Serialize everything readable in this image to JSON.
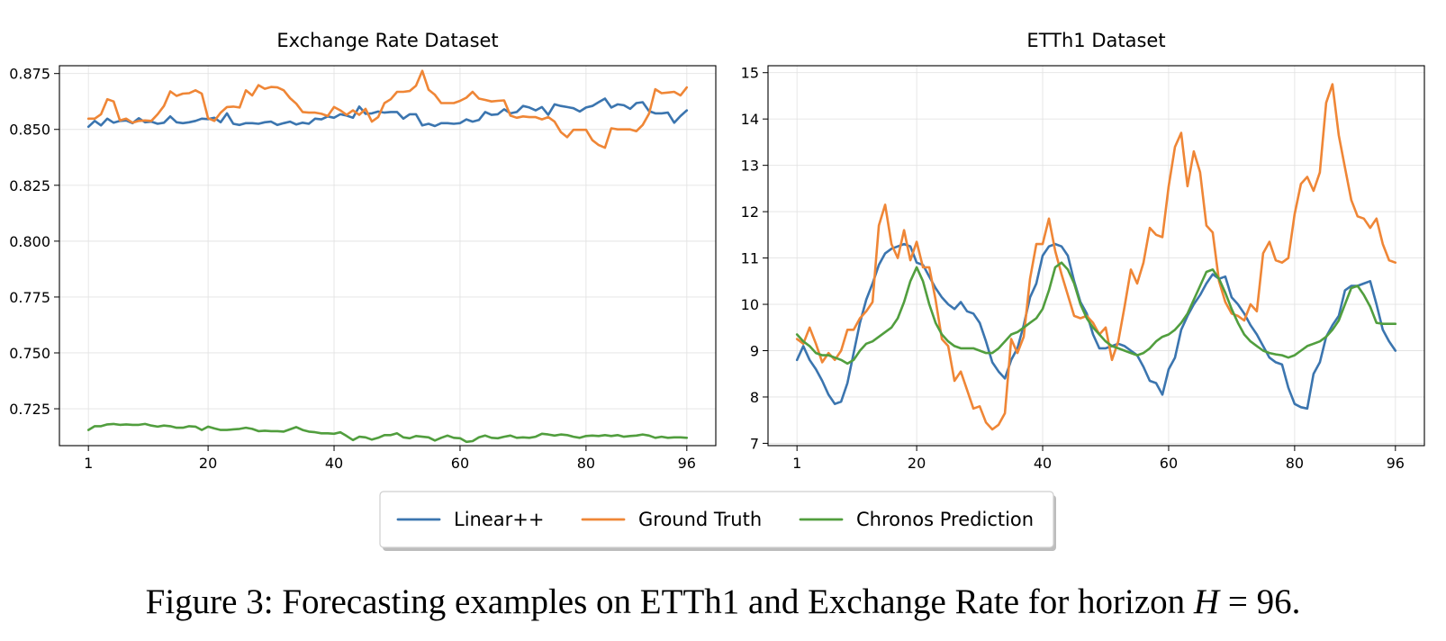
{
  "caption": {
    "text": "Figure 3: Forecasting examples on ETTh1 and Exchange Rate for horizon ",
    "math_var": "H",
    "math_rest": " = 96."
  },
  "legend": {
    "placement": "bottom-center, outside",
    "entries": [
      {
        "name": "Linear++",
        "color": "#3b75af"
      },
      {
        "name": "Ground Truth",
        "color": "#ef8636"
      },
      {
        "name": "Chronos Prediction",
        "color": "#519e3e"
      }
    ]
  },
  "chart_data": [
    {
      "type": "line",
      "title": "Exchange Rate Dataset",
      "xlabel": "",
      "ylabel": "",
      "xlim": [
        -3.6,
        100.6
      ],
      "ylim": [
        0.7085,
        0.8785
      ],
      "grid": true,
      "xticks": [
        1,
        20,
        40,
        60,
        80,
        96
      ],
      "yticks": [
        0.725,
        0.75,
        0.775,
        0.8,
        0.825,
        0.85,
        0.875
      ],
      "ytick_labels": [
        "0.725",
        "0.750",
        "0.775",
        "0.800",
        "0.825",
        "0.850",
        "0.875"
      ],
      "x_start": 1,
      "series": [
        {
          "name": "Linear++",
          "color": "#3b75af",
          "values": [
            0.8512,
            0.8538,
            0.8518,
            0.8548,
            0.853,
            0.8538,
            0.854,
            0.8528,
            0.855,
            0.8532,
            0.8535,
            0.8525,
            0.853,
            0.8558,
            0.8532,
            0.8528,
            0.8532,
            0.8538,
            0.8548,
            0.8546,
            0.8552,
            0.8532,
            0.8572,
            0.8525,
            0.852,
            0.8528,
            0.8528,
            0.8525,
            0.8532,
            0.8535,
            0.852,
            0.8528,
            0.8535,
            0.8522,
            0.853,
            0.8525,
            0.8548,
            0.8545,
            0.8558,
            0.8552,
            0.8568,
            0.8562,
            0.8552,
            0.8602,
            0.857,
            0.8572,
            0.858,
            0.8575,
            0.8578,
            0.8578,
            0.8548,
            0.8568,
            0.8568,
            0.8518,
            0.8525,
            0.8515,
            0.8528,
            0.8528,
            0.8525,
            0.8528,
            0.8545,
            0.8535,
            0.8542,
            0.8578,
            0.8565,
            0.8568,
            0.859,
            0.8572,
            0.8578,
            0.8605,
            0.8598,
            0.8585,
            0.86,
            0.8565,
            0.8612,
            0.8605,
            0.86,
            0.8595,
            0.858,
            0.8598,
            0.8605,
            0.8622,
            0.8638,
            0.8598,
            0.8612,
            0.8608,
            0.8592,
            0.8618,
            0.8622,
            0.8582,
            0.8572,
            0.8572,
            0.8575,
            0.853,
            0.856,
            0.8585
          ]
        },
        {
          "name": "Ground Truth",
          "color": "#ef8636",
          "values": [
            0.8548,
            0.8548,
            0.8568,
            0.8635,
            0.8625,
            0.854,
            0.8548,
            0.853,
            0.8538,
            0.854,
            0.8538,
            0.8568,
            0.8605,
            0.867,
            0.865,
            0.866,
            0.8662,
            0.8675,
            0.866,
            0.855,
            0.8538,
            0.8575,
            0.86,
            0.8602,
            0.8598,
            0.8675,
            0.8652,
            0.8698,
            0.8682,
            0.869,
            0.8688,
            0.8675,
            0.864,
            0.8615,
            0.8578,
            0.8575,
            0.8575,
            0.857,
            0.856,
            0.86,
            0.8585,
            0.8565,
            0.8585,
            0.8565,
            0.8592,
            0.8535,
            0.8555,
            0.8618,
            0.8635,
            0.8668,
            0.8668,
            0.8672,
            0.8695,
            0.8762,
            0.8678,
            0.8655,
            0.8618,
            0.8618,
            0.8618,
            0.8628,
            0.8642,
            0.8668,
            0.8638,
            0.8632,
            0.8625,
            0.8628,
            0.863,
            0.8562,
            0.8552,
            0.8558,
            0.8555,
            0.8555,
            0.8545,
            0.8555,
            0.8535,
            0.8488,
            0.8465,
            0.8498,
            0.8498,
            0.8498,
            0.8452,
            0.843,
            0.8418,
            0.8505,
            0.85,
            0.85,
            0.85,
            0.8492,
            0.852,
            0.857,
            0.868,
            0.8662,
            0.8665,
            0.8668,
            0.8652,
            0.8688
          ]
        },
        {
          "name": "Chronos Prediction",
          "color": "#519e3e",
          "values": [
            0.7155,
            0.7172,
            0.7172,
            0.718,
            0.7182,
            0.7178,
            0.718,
            0.7178,
            0.7178,
            0.7182,
            0.7175,
            0.717,
            0.7175,
            0.7172,
            0.7165,
            0.7165,
            0.7172,
            0.717,
            0.7155,
            0.717,
            0.7162,
            0.7155,
            0.7155,
            0.7158,
            0.716,
            0.7165,
            0.716,
            0.715,
            0.7152,
            0.715,
            0.715,
            0.7148,
            0.7158,
            0.7168,
            0.7155,
            0.7148,
            0.7145,
            0.714,
            0.714,
            0.7138,
            0.7145,
            0.7128,
            0.711,
            0.7125,
            0.7122,
            0.7112,
            0.712,
            0.7132,
            0.7132,
            0.714,
            0.7122,
            0.7118,
            0.7128,
            0.7125,
            0.7122,
            0.7108,
            0.712,
            0.713,
            0.712,
            0.7118,
            0.7102,
            0.7105,
            0.7122,
            0.713,
            0.712,
            0.7118,
            0.7125,
            0.713,
            0.712,
            0.7122,
            0.712,
            0.7125,
            0.7138,
            0.7135,
            0.713,
            0.7135,
            0.7132,
            0.7125,
            0.712,
            0.7128,
            0.713,
            0.7128,
            0.7132,
            0.7128,
            0.7132,
            0.7125,
            0.7128,
            0.713,
            0.7135,
            0.713,
            0.712,
            0.7125,
            0.712,
            0.7122,
            0.7122,
            0.712
          ]
        }
      ]
    },
    {
      "type": "line",
      "title": "ETTh1 Dataset",
      "xlabel": "",
      "ylabel": "",
      "xlim": [
        -3.6,
        100.6
      ],
      "ylim": [
        6.95,
        15.15
      ],
      "grid": true,
      "xticks": [
        1,
        20,
        40,
        60,
        80,
        96
      ],
      "yticks": [
        7,
        8,
        9,
        10,
        11,
        12,
        13,
        14,
        15
      ],
      "ytick_labels": [
        "7",
        "8",
        "9",
        "10",
        "11",
        "12",
        "13",
        "14",
        "15"
      ],
      "x_start": 1,
      "series": [
        {
          "name": "Linear++",
          "color": "#3b75af",
          "values": [
            8.8,
            9.1,
            8.8,
            8.6,
            8.35,
            8.05,
            7.85,
            7.9,
            8.3,
            8.95,
            9.6,
            10.1,
            10.45,
            10.85,
            11.1,
            11.2,
            11.25,
            11.3,
            11.25,
            10.9,
            10.85,
            10.6,
            10.35,
            10.15,
            10.0,
            9.9,
            10.05,
            9.85,
            9.8,
            9.6,
            9.2,
            8.75,
            8.55,
            8.4,
            8.8,
            9.05,
            9.55,
            10.15,
            10.45,
            11.05,
            11.25,
            11.3,
            11.25,
            11.05,
            10.5,
            10.05,
            9.8,
            9.35,
            9.05,
            9.05,
            9.1,
            9.15,
            9.1,
            9.0,
            8.9,
            8.65,
            8.35,
            8.3,
            8.05,
            8.6,
            8.85,
            9.45,
            9.75,
            10.0,
            10.2,
            10.45,
            10.65,
            10.55,
            10.6,
            10.15,
            10.0,
            9.8,
            9.55,
            9.35,
            9.1,
            8.85,
            8.75,
            8.7,
            8.2,
            7.85,
            7.78,
            7.75,
            8.5,
            8.75,
            9.3,
            9.55,
            9.75,
            10.3,
            10.4,
            10.4,
            10.45,
            10.5,
            10.0,
            9.45,
            9.2,
            9.0
          ]
        },
        {
          "name": "Ground Truth",
          "color": "#ef8636",
          "values": [
            9.25,
            9.15,
            9.5,
            9.15,
            8.75,
            8.95,
            8.8,
            9.0,
            9.45,
            9.45,
            9.7,
            9.85,
            10.05,
            11.7,
            12.15,
            11.3,
            11.0,
            11.6,
            10.95,
            11.35,
            10.8,
            10.8,
            10.1,
            9.25,
            9.1,
            8.35,
            8.55,
            8.15,
            7.75,
            7.8,
            7.45,
            7.3,
            7.4,
            7.65,
            9.25,
            8.95,
            9.3,
            10.55,
            11.3,
            11.3,
            11.85,
            11.15,
            10.65,
            10.2,
            9.75,
            9.7,
            9.75,
            9.6,
            9.35,
            9.5,
            8.8,
            9.2,
            9.95,
            10.75,
            10.45,
            10.9,
            11.65,
            11.5,
            11.45,
            12.55,
            13.4,
            13.7,
            12.55,
            13.3,
            12.85,
            11.7,
            11.55,
            10.5,
            10.05,
            9.8,
            9.75,
            9.65,
            10.0,
            9.85,
            11.1,
            11.35,
            10.95,
            10.9,
            11.0,
            11.95,
            12.6,
            12.75,
            12.45,
            12.85,
            14.35,
            14.75,
            13.65,
            12.95,
            12.25,
            11.9,
            11.85,
            11.65,
            11.85,
            11.3,
            10.95,
            10.9
          ]
        },
        {
          "name": "Chronos Prediction",
          "color": "#519e3e",
          "values": [
            9.35,
            9.2,
            9.1,
            8.95,
            8.9,
            8.9,
            8.85,
            8.8,
            8.72,
            8.8,
            9.0,
            9.15,
            9.2,
            9.3,
            9.4,
            9.5,
            9.7,
            10.05,
            10.5,
            10.8,
            10.5,
            10.0,
            9.6,
            9.35,
            9.2,
            9.1,
            9.05,
            9.05,
            9.05,
            9.0,
            8.95,
            8.95,
            9.05,
            9.2,
            9.35,
            9.4,
            9.5,
            9.6,
            9.7,
            9.9,
            10.3,
            10.8,
            10.9,
            10.75,
            10.45,
            10.0,
            9.7,
            9.5,
            9.35,
            9.2,
            9.1,
            9.05,
            9.0,
            8.95,
            8.9,
            8.95,
            9.05,
            9.2,
            9.3,
            9.35,
            9.45,
            9.6,
            9.8,
            10.1,
            10.4,
            10.7,
            10.75,
            10.55,
            10.25,
            9.9,
            9.6,
            9.35,
            9.2,
            9.1,
            9.0,
            8.95,
            8.92,
            8.9,
            8.85,
            8.9,
            9.0,
            9.1,
            9.15,
            9.2,
            9.3,
            9.45,
            9.65,
            10.0,
            10.35,
            10.4,
            10.2,
            9.95,
            9.6,
            9.58,
            9.58,
            9.58
          ]
        }
      ]
    }
  ]
}
